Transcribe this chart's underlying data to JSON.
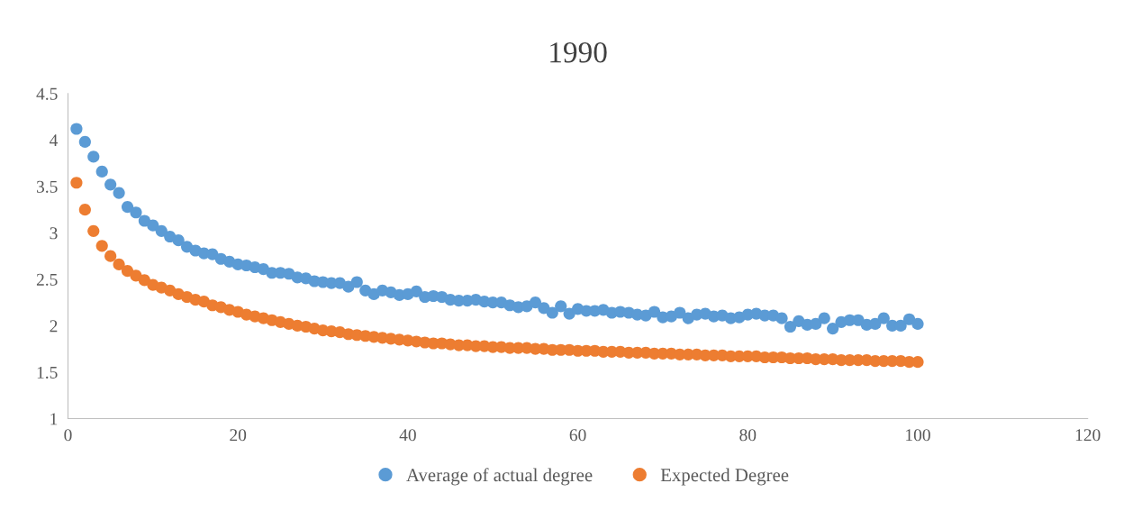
{
  "chart_data": {
    "type": "scatter",
    "title": "1990",
    "x": [
      1,
      2,
      3,
      4,
      5,
      6,
      7,
      8,
      9,
      10,
      11,
      12,
      13,
      14,
      15,
      16,
      17,
      18,
      19,
      20,
      21,
      22,
      23,
      24,
      25,
      26,
      27,
      28,
      29,
      30,
      31,
      32,
      33,
      34,
      35,
      36,
      37,
      38,
      39,
      40,
      41,
      42,
      43,
      44,
      45,
      46,
      47,
      48,
      49,
      50,
      51,
      52,
      53,
      54,
      55,
      56,
      57,
      58,
      59,
      60,
      61,
      62,
      63,
      64,
      65,
      66,
      67,
      68,
      69,
      70,
      71,
      72,
      73,
      74,
      75,
      76,
      77,
      78,
      79,
      80,
      81,
      82,
      83,
      84,
      85,
      86,
      87,
      88,
      89,
      90,
      91,
      92,
      93,
      94,
      95,
      96,
      97,
      98,
      99,
      100
    ],
    "series": [
      {
        "name": "Average of actual degree",
        "color": "#5b9bd5",
        "values": [
          4.12,
          3.98,
          3.82,
          3.66,
          3.52,
          3.43,
          3.28,
          3.22,
          3.13,
          3.08,
          3.02,
          2.96,
          2.92,
          2.85,
          2.81,
          2.78,
          2.77,
          2.72,
          2.69,
          2.66,
          2.65,
          2.63,
          2.61,
          2.57,
          2.57,
          2.56,
          2.52,
          2.51,
          2.48,
          2.47,
          2.46,
          2.46,
          2.42,
          2.47,
          2.38,
          2.34,
          2.38,
          2.36,
          2.33,
          2.34,
          2.37,
          2.31,
          2.32,
          2.31,
          2.28,
          2.27,
          2.27,
          2.28,
          2.26,
          2.25,
          2.25,
          2.22,
          2.2,
          2.21,
          2.25,
          2.19,
          2.14,
          2.21,
          2.13,
          2.18,
          2.16,
          2.16,
          2.17,
          2.14,
          2.15,
          2.14,
          2.12,
          2.11,
          2.15,
          2.09,
          2.1,
          2.14,
          2.08,
          2.12,
          2.13,
          2.1,
          2.11,
          2.08,
          2.09,
          2.12,
          2.13,
          2.11,
          2.11,
          2.08,
          1.99,
          2.05,
          2.01,
          2.02,
          2.08,
          1.97,
          2.04,
          2.06,
          2.06,
          2.01,
          2.02,
          2.08,
          2.0,
          2.0,
          2.07,
          2.02
        ]
      },
      {
        "name": "Expected Degree",
        "color": "#ed7d31",
        "values": [
          3.54,
          3.25,
          3.02,
          2.86,
          2.75,
          2.66,
          2.59,
          2.54,
          2.49,
          2.44,
          2.41,
          2.38,
          2.34,
          2.31,
          2.28,
          2.26,
          2.22,
          2.2,
          2.17,
          2.15,
          2.12,
          2.1,
          2.08,
          2.06,
          2.04,
          2.02,
          2.0,
          1.99,
          1.97,
          1.95,
          1.94,
          1.93,
          1.91,
          1.9,
          1.89,
          1.88,
          1.87,
          1.86,
          1.85,
          1.84,
          1.83,
          1.82,
          1.81,
          1.81,
          1.8,
          1.79,
          1.79,
          1.78,
          1.78,
          1.77,
          1.77,
          1.76,
          1.76,
          1.76,
          1.75,
          1.75,
          1.74,
          1.74,
          1.74,
          1.73,
          1.73,
          1.73,
          1.72,
          1.72,
          1.72,
          1.71,
          1.71,
          1.71,
          1.7,
          1.7,
          1.7,
          1.69,
          1.69,
          1.69,
          1.68,
          1.68,
          1.68,
          1.67,
          1.67,
          1.67,
          1.67,
          1.66,
          1.66,
          1.66,
          1.65,
          1.65,
          1.65,
          1.64,
          1.64,
          1.64,
          1.63,
          1.63,
          1.63,
          1.63,
          1.62,
          1.62,
          1.62,
          1.62,
          1.61,
          1.61
        ]
      }
    ],
    "xlim": [
      0,
      120
    ],
    "xticks": [
      0,
      20,
      40,
      60,
      80,
      100,
      120
    ],
    "ylim": [
      1,
      4.5
    ],
    "yticks": [
      {
        "value": 1,
        "label": "1"
      },
      {
        "value": 1.5,
        "label": "1.5"
      },
      {
        "value": 2,
        "label": "2"
      },
      {
        "value": 2.5,
        "label": "2.5"
      },
      {
        "value": 3,
        "label": "3"
      },
      {
        "value": 3.5,
        "label": "3.5"
      },
      {
        "value": 4,
        "label": "4"
      },
      {
        "value": 4.5,
        "label": "4.5"
      }
    ],
    "grid": false,
    "legend": "bottom",
    "marker": "circle"
  }
}
